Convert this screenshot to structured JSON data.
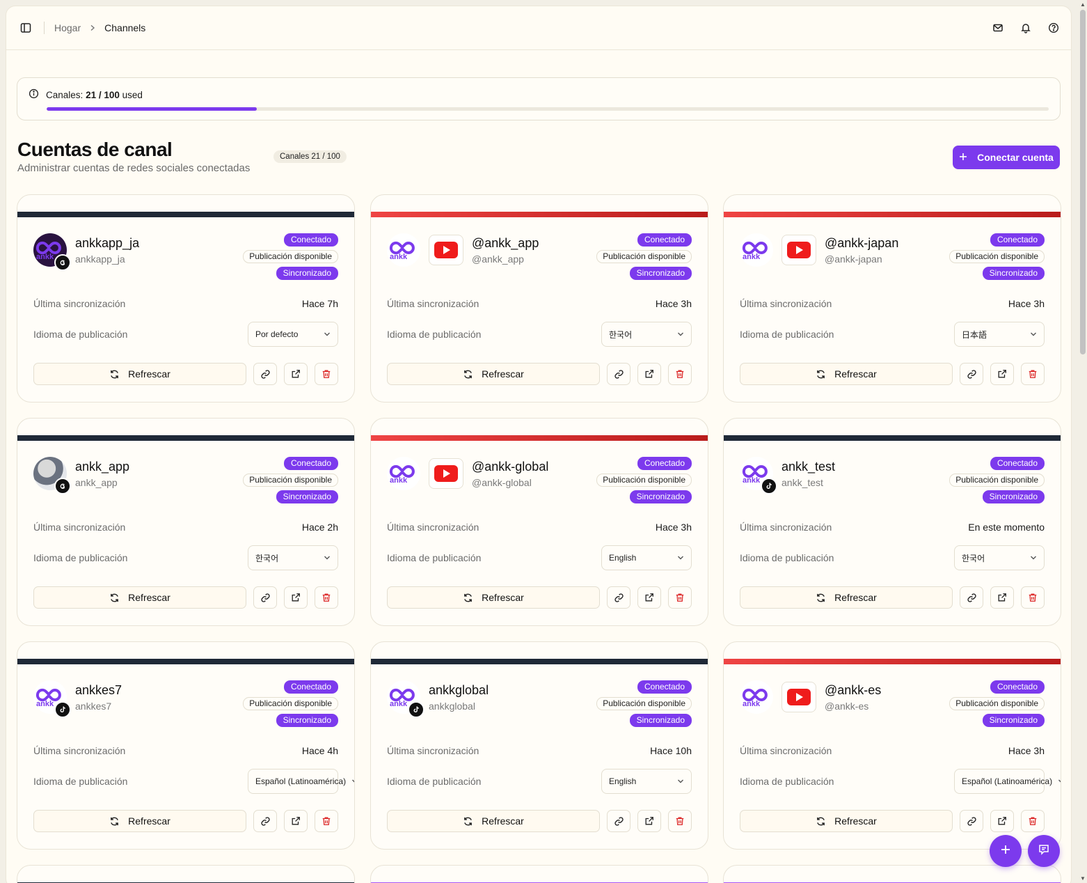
{
  "breadcrumb": {
    "home": "Hogar",
    "current": "Channels"
  },
  "quota": {
    "prefix": "Canales:",
    "value": "21 / 100",
    "suffix": "used",
    "fraction": 0.21
  },
  "page": {
    "title": "Cuentas de canal",
    "subtitle": "Administrar cuentas de redes sociales conectadas",
    "count_pill": "Canales 21 / 100",
    "connect_label": "Conectar cuenta"
  },
  "labels": {
    "last_sync": "Última sincronización",
    "pub_lang": "Idioma de publicación",
    "refresh": "Refrescar",
    "badge_connected": "Conectado",
    "badge_publish": "Publicación disponible",
    "badge_synced": "Sincronizado"
  },
  "colors": {
    "accent": "#7c3aed",
    "youtube": "#ef4444",
    "dark": "#1f2937"
  },
  "cards": [
    {
      "name": "ankkapp_ja",
      "handle": "ankkapp_ja",
      "platform": "threads-icon",
      "stripe": "dark",
      "last_sync": "Hace 7h",
      "language": "Por defecto"
    },
    {
      "name": "@ankk_app",
      "handle": "@ankk_app",
      "platform": "youtube-icon",
      "stripe": "red",
      "last_sync": "Hace 3h",
      "language": "한국어"
    },
    {
      "name": "@ankk-japan",
      "handle": "@ankk-japan",
      "platform": "youtube-icon",
      "stripe": "red",
      "last_sync": "Hace 3h",
      "language": "日本語"
    },
    {
      "name": "ankk_app",
      "handle": "ankk_app",
      "platform": "threads-icon",
      "stripe": "dark",
      "last_sync": "Hace 2h",
      "language": "한국어"
    },
    {
      "name": "@ankk-global",
      "handle": "@ankk-global",
      "platform": "youtube-icon",
      "stripe": "red",
      "last_sync": "Hace 3h",
      "language": "English"
    },
    {
      "name": "ankk_test",
      "handle": "ankk_test",
      "platform": "tiktok-icon",
      "stripe": "dark",
      "last_sync": "En este momento",
      "language": "한국어"
    },
    {
      "name": "ankkes7",
      "handle": "ankkes7",
      "platform": "tiktok-icon",
      "stripe": "dark",
      "last_sync": "Hace 4h",
      "language": "Español (Latinoamérica)"
    },
    {
      "name": "ankkglobal",
      "handle": "ankkglobal",
      "platform": "tiktok-icon",
      "stripe": "dark",
      "last_sync": "Hace 10h",
      "language": "English"
    },
    {
      "name": "@ankk-es",
      "handle": "@ankk-es",
      "platform": "youtube-icon",
      "stripe": "red",
      "last_sync": "Hace 3h",
      "language": "Español (Latinoamérica)"
    }
  ]
}
